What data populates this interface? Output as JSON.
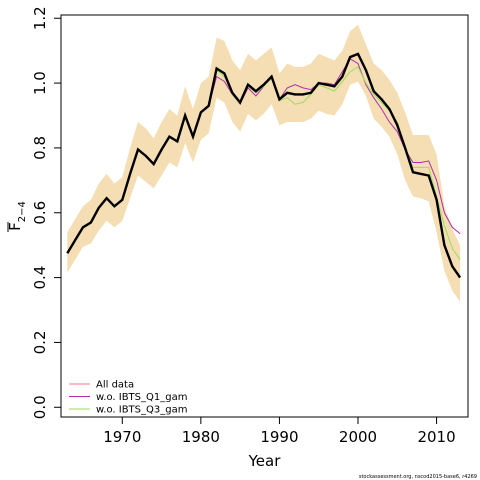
{
  "chart_data": {
    "type": "line",
    "xlabel": "Year",
    "ylabel_main": "F",
    "ylabel_sub": "2−4",
    "xlim": [
      1962.2,
      2014
    ],
    "ylim": [
      -0.03,
      1.21
    ],
    "xticks": [
      "1970",
      "1980",
      "1990",
      "2000",
      "2010"
    ],
    "yticks": [
      "0.0",
      "0.2",
      "0.4",
      "0.6",
      "0.8",
      "1.0",
      "1.2"
    ],
    "footnote": "stockassessment.org, nscod2015-base6, r4269",
    "legend_position": "bottom-left",
    "x": [
      1963,
      1964,
      1965,
      1966,
      1967,
      1968,
      1969,
      1970,
      1971,
      1972,
      1973,
      1974,
      1975,
      1976,
      1977,
      1978,
      1979,
      1980,
      1981,
      1982,
      1983,
      1984,
      1985,
      1986,
      1987,
      1988,
      1989,
      1990,
      1991,
      1992,
      1993,
      1994,
      1995,
      1996,
      1997,
      1998,
      1999,
      2000,
      2001,
      2002,
      2003,
      2004,
      2005,
      2006,
      2007,
      2008,
      2009,
      2010,
      2011,
      2012,
      2013
    ],
    "series": [
      {
        "name": "All data",
        "color": "#f0758a",
        "values": [
          0.475,
          0.515,
          0.555,
          0.57,
          0.615,
          0.645,
          0.62,
          0.64,
          0.72,
          0.795,
          0.775,
          0.75,
          0.795,
          0.835,
          0.82,
          0.9,
          0.835,
          0.91,
          0.93,
          1.045,
          1.03,
          0.97,
          0.94,
          0.995,
          0.975,
          0.995,
          1.02,
          0.95,
          0.97,
          0.965,
          0.965,
          0.97,
          1.0,
          0.995,
          0.99,
          1.02,
          1.08,
          1.09,
          1.04,
          0.975,
          0.95,
          0.92,
          0.87,
          0.8,
          0.725,
          0.72,
          0.715,
          0.64,
          0.5,
          0.435,
          0.4
        ]
      },
      {
        "name": "w.o. IBTS_Q1_gam",
        "color": "#b02db0",
        "values": [
          0.475,
          0.515,
          0.555,
          0.57,
          0.615,
          0.645,
          0.62,
          0.64,
          0.72,
          0.795,
          0.775,
          0.75,
          0.795,
          0.835,
          0.82,
          0.9,
          0.835,
          0.91,
          0.93,
          1.02,
          1.005,
          0.965,
          0.935,
          0.985,
          0.96,
          0.99,
          1.02,
          0.95,
          0.985,
          0.995,
          0.985,
          0.98,
          1.0,
          1.0,
          0.995,
          1.035,
          1.075,
          1.06,
          0.995,
          0.955,
          0.92,
          0.88,
          0.85,
          0.795,
          0.755,
          0.755,
          0.76,
          0.7,
          0.6,
          0.555,
          0.535
        ]
      },
      {
        "name": "w.o. IBTS_Q3_gam",
        "color": "#9ade5a",
        "values": [
          0.475,
          0.515,
          0.555,
          0.57,
          0.615,
          0.645,
          0.62,
          0.64,
          0.72,
          0.795,
          0.775,
          0.75,
          0.795,
          0.835,
          0.82,
          0.9,
          0.835,
          0.91,
          0.93,
          1.04,
          1.02,
          0.965,
          0.935,
          0.99,
          0.97,
          0.99,
          1.015,
          0.945,
          0.955,
          0.935,
          0.94,
          0.965,
          0.995,
          0.985,
          0.975,
          1.005,
          1.035,
          1.05,
          1.0,
          0.965,
          0.94,
          0.915,
          0.88,
          0.8,
          0.74,
          0.74,
          0.74,
          0.65,
          0.56,
          0.49,
          0.455
        ]
      }
    ],
    "main_line": {
      "color": "#000000",
      "values": [
        0.475,
        0.515,
        0.555,
        0.57,
        0.615,
        0.645,
        0.62,
        0.64,
        0.72,
        0.795,
        0.775,
        0.75,
        0.795,
        0.835,
        0.82,
        0.9,
        0.835,
        0.91,
        0.93,
        1.045,
        1.03,
        0.97,
        0.94,
        0.995,
        0.975,
        0.995,
        1.02,
        0.95,
        0.97,
        0.965,
        0.965,
        0.97,
        1.0,
        0.995,
        0.99,
        1.02,
        1.08,
        1.09,
        1.04,
        0.975,
        0.95,
        0.92,
        0.87,
        0.8,
        0.725,
        0.72,
        0.715,
        0.64,
        0.5,
        0.435,
        0.4
      ]
    },
    "confidence_band": {
      "color": "#f5deb3",
      "upper": [
        0.54,
        0.58,
        0.62,
        0.64,
        0.69,
        0.72,
        0.69,
        0.71,
        0.8,
        0.88,
        0.86,
        0.83,
        0.88,
        0.92,
        0.9,
        0.99,
        0.92,
        1.0,
        1.02,
        1.14,
        1.13,
        1.07,
        1.04,
        1.09,
        1.07,
        1.09,
        1.11,
        1.03,
        1.06,
        1.05,
        1.05,
        1.06,
        1.09,
        1.08,
        1.07,
        1.1,
        1.16,
        1.18,
        1.12,
        1.06,
        1.04,
        1.01,
        0.97,
        0.91,
        0.84,
        0.84,
        0.84,
        0.78,
        0.62,
        0.55,
        0.5
      ],
      "lower": [
        0.415,
        0.455,
        0.495,
        0.505,
        0.545,
        0.575,
        0.555,
        0.575,
        0.645,
        0.715,
        0.695,
        0.675,
        0.715,
        0.755,
        0.74,
        0.815,
        0.755,
        0.825,
        0.845,
        0.955,
        0.94,
        0.88,
        0.85,
        0.905,
        0.885,
        0.905,
        0.935,
        0.87,
        0.88,
        0.88,
        0.88,
        0.89,
        0.915,
        0.905,
        0.9,
        0.935,
        0.995,
        1.005,
        0.96,
        0.89,
        0.865,
        0.835,
        0.78,
        0.7,
        0.65,
        0.645,
        0.635,
        0.54,
        0.42,
        0.36,
        0.325
      ]
    }
  }
}
